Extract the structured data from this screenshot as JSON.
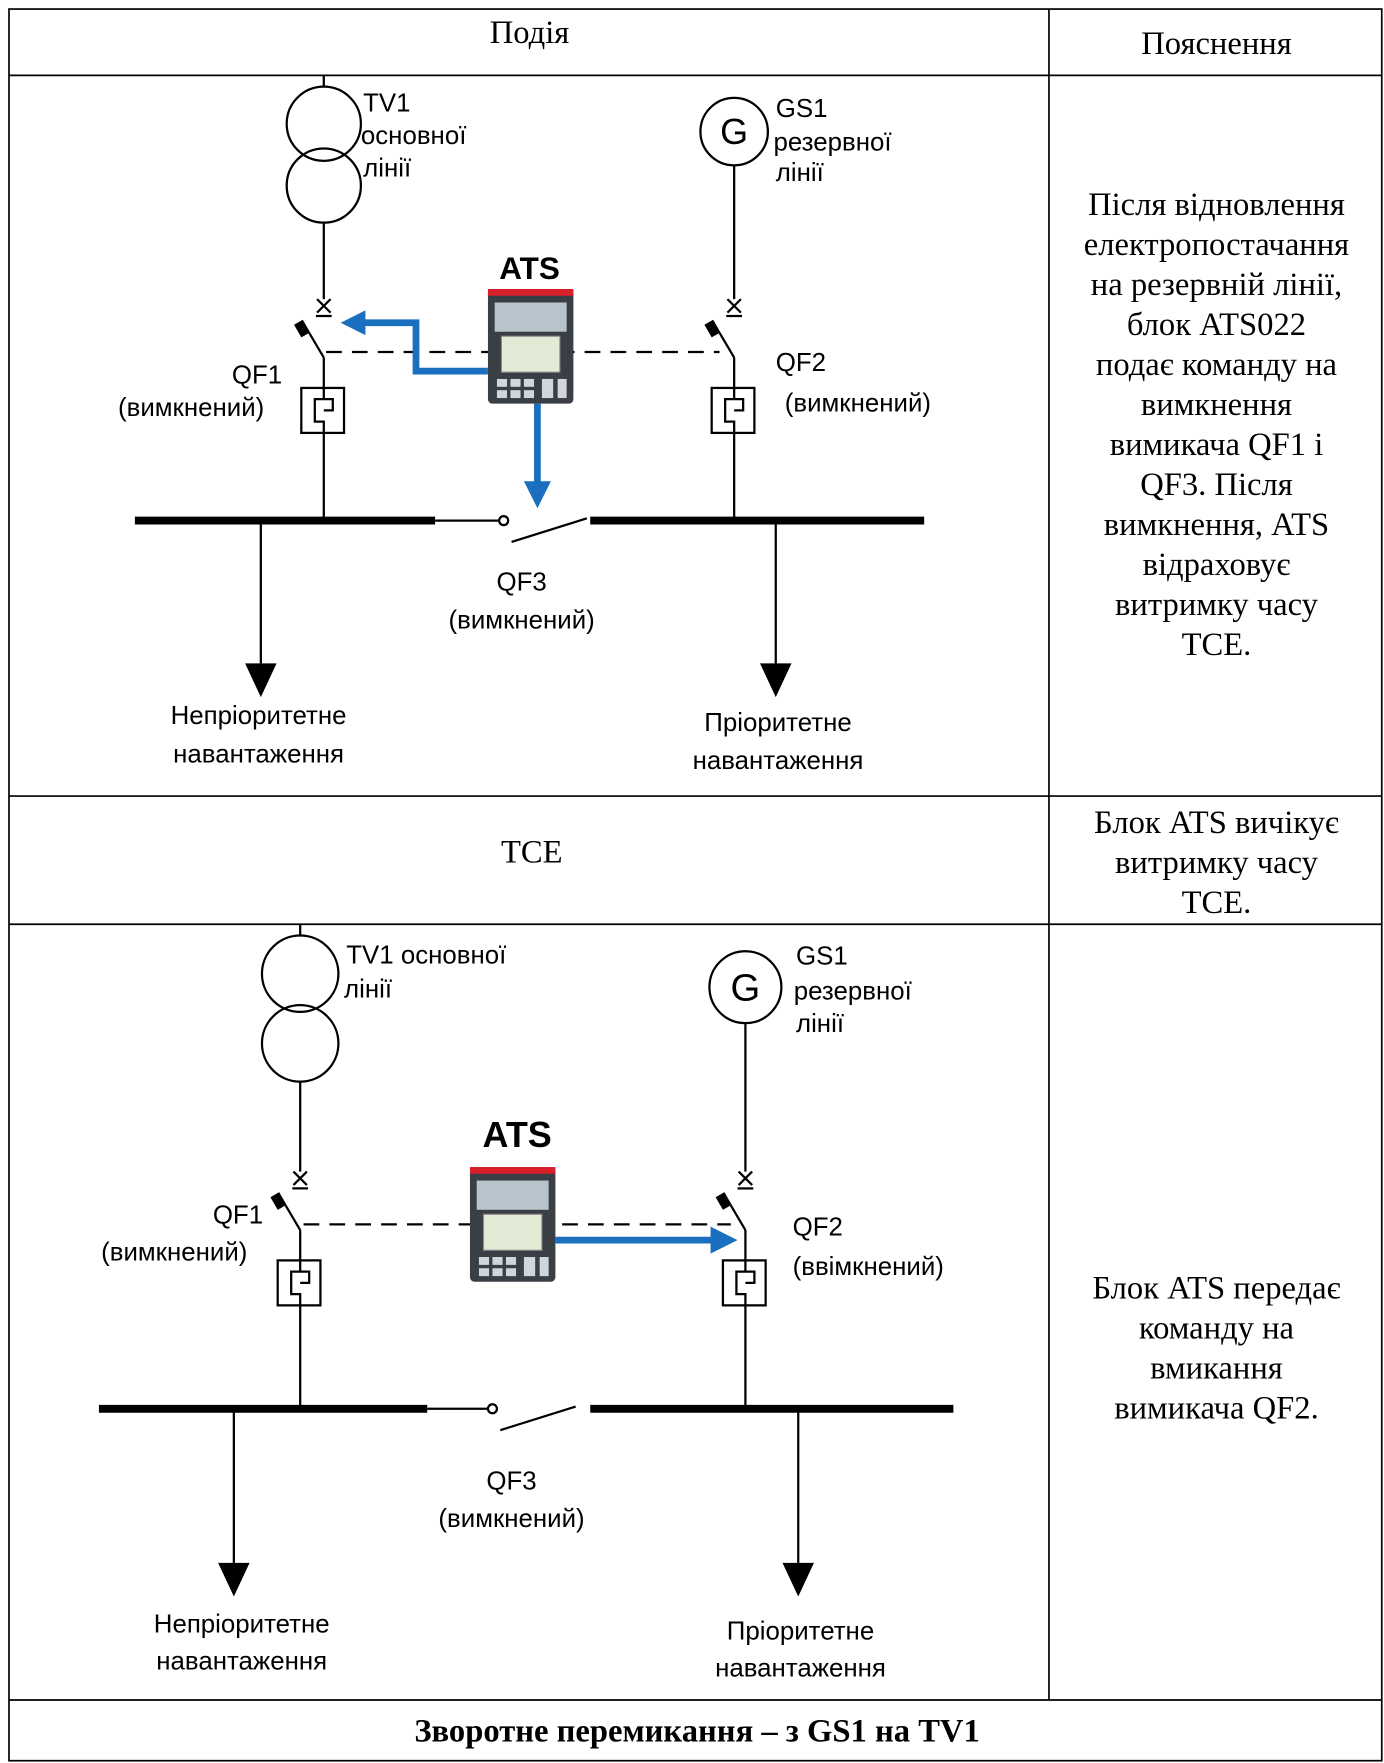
{
  "table": {
    "header": [
      "Подія",
      "Пояснення"
    ],
    "rows": [
      {
        "diagram": {
          "tv1": [
            "TV1",
            "основної",
            "лінії"
          ],
          "gs1": [
            "GS1",
            "резервної",
            "лінії"
          ],
          "ats": "ATS",
          "qf1": [
            "QF1",
            "(вимкнений)"
          ],
          "qf2": [
            "QF2",
            "(вимкнений)"
          ],
          "qf3": [
            "QF3",
            "(вимкнений)"
          ],
          "load_left": [
            "Непріоритетне",
            "навантаження"
          ],
          "load_right": [
            "Пріоритетне",
            "навантаження"
          ]
        },
        "explanation": [
          "Після відновлення",
          "електропостачання",
          "на резервній лінії,",
          "блок ATS022",
          "подає команду на",
          "вимкнення",
          "вимикача QF1 і",
          "QF3. Після",
          "вимкнення, ATS",
          "відраховує",
          "витримку часу",
          "TCE."
        ]
      },
      {
        "event": "TCE",
        "explanation": [
          "Блок ATS вичікує",
          "витримку часу",
          "TCE."
        ]
      },
      {
        "diagram": {
          "tv1": [
            "TV1  основної",
            "лінії"
          ],
          "gs1": [
            "GS1",
            "резервної",
            "лінії"
          ],
          "ats": "ATS",
          "qf1": [
            "QF1",
            "(вимкнений)"
          ],
          "qf2": [
            "QF2",
            "(ввімкнений)"
          ],
          "qf3": [
            "QF3",
            "(вимкнений)"
          ],
          "load_left": [
            "Непріоритетне",
            "навантаження"
          ],
          "load_right": [
            "Пріоритетне",
            "навантаження"
          ]
        },
        "explanation": [
          "Блок ATS передає",
          "команду на",
          "вмикання",
          "вимикача QF2."
        ]
      }
    ],
    "footer": "Зворотне перемикання – з GS1 на TV1"
  }
}
